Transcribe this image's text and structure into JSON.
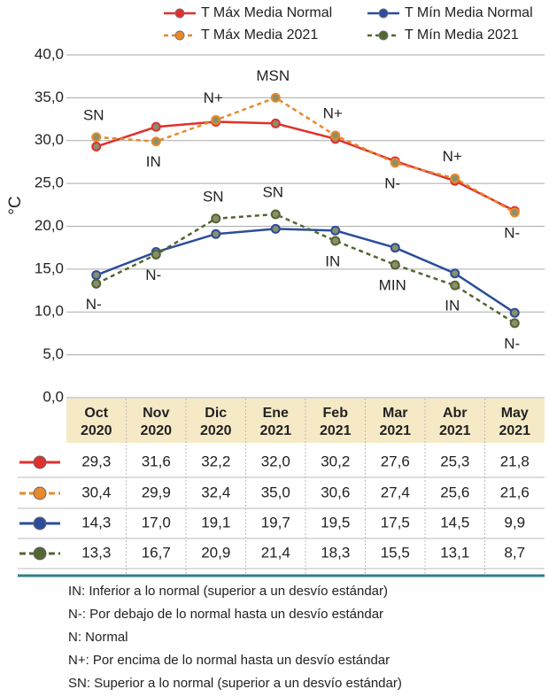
{
  "chart_data": {
    "type": "line",
    "ylabel": "°C",
    "categories": [
      "Oct 2020",
      "Nov 2020",
      "Dic 2020",
      "Ene 2021",
      "Feb 2021",
      "Mar 2021",
      "Abr 2021",
      "May 2021"
    ],
    "ylim": [
      0,
      40
    ],
    "yticks": [
      {
        "value": 0,
        "label": "0,0"
      },
      {
        "value": 5,
        "label": "5,0"
      },
      {
        "value": 10,
        "label": "10,0"
      },
      {
        "value": 15,
        "label": "15,0"
      },
      {
        "value": 20,
        "label": "20,0"
      },
      {
        "value": 25,
        "label": "25,0"
      },
      {
        "value": 30,
        "label": "30,0"
      },
      {
        "value": 35,
        "label": "35,0"
      },
      {
        "value": 40,
        "label": "40,0"
      }
    ],
    "grid": true,
    "series": [
      {
        "name": "T Máx Media Normal",
        "color": "#e0302c",
        "dashed": false,
        "values": [
          29.3,
          31.6,
          32.2,
          32.0,
          30.2,
          27.6,
          25.3,
          21.8
        ],
        "value_labels": [
          "29,3",
          "31,6",
          "32,2",
          "32,0",
          "30,2",
          "27,6",
          "25,3",
          "21,8"
        ]
      },
      {
        "name": "T Máx Media 2021",
        "color": "#e8892b",
        "dashed": true,
        "values": [
          30.4,
          29.9,
          32.4,
          35.0,
          30.6,
          27.4,
          25.6,
          21.6
        ],
        "value_labels": [
          "30,4",
          "29,9",
          "32,4",
          "35,0",
          "30,6",
          "27,4",
          "25,6",
          "21,6"
        ],
        "annotations": [
          "SN",
          "IN",
          "N+",
          "MSN",
          "N+",
          "N-",
          "N+",
          "N-"
        ]
      },
      {
        "name": "T Mín Media Normal",
        "color": "#2b4d9b",
        "dashed": false,
        "values": [
          14.3,
          17.0,
          19.1,
          19.7,
          19.5,
          17.5,
          14.5,
          9.9
        ],
        "value_labels": [
          "14,3",
          "17,0",
          "19,1",
          "19,7",
          "19,5",
          "17,5",
          "14,5",
          "9,9"
        ]
      },
      {
        "name": "T Mín Media 2021",
        "color": "#526631",
        "dashed": true,
        "values": [
          13.3,
          16.7,
          20.9,
          21.4,
          18.3,
          15.5,
          13.1,
          8.7
        ],
        "value_labels": [
          "13,3",
          "16,7",
          "20,9",
          "21,4",
          "18,3",
          "15,5",
          "13,1",
          "8,7"
        ],
        "annotations": [
          "N-",
          "N-",
          "SN",
          "SN",
          "IN",
          "MIN",
          "IN",
          "N-"
        ]
      }
    ],
    "notes": [
      "IN: Inferior a lo normal (superior a un desvío estándar)",
      "N-: Por debajo de lo normal hasta un desvío estándar",
      "N: Normal",
      "N+: Por encima de lo normal hasta un desvío estándar",
      "SN: Superior a lo normal (superior a un desvío estándar)"
    ]
  }
}
